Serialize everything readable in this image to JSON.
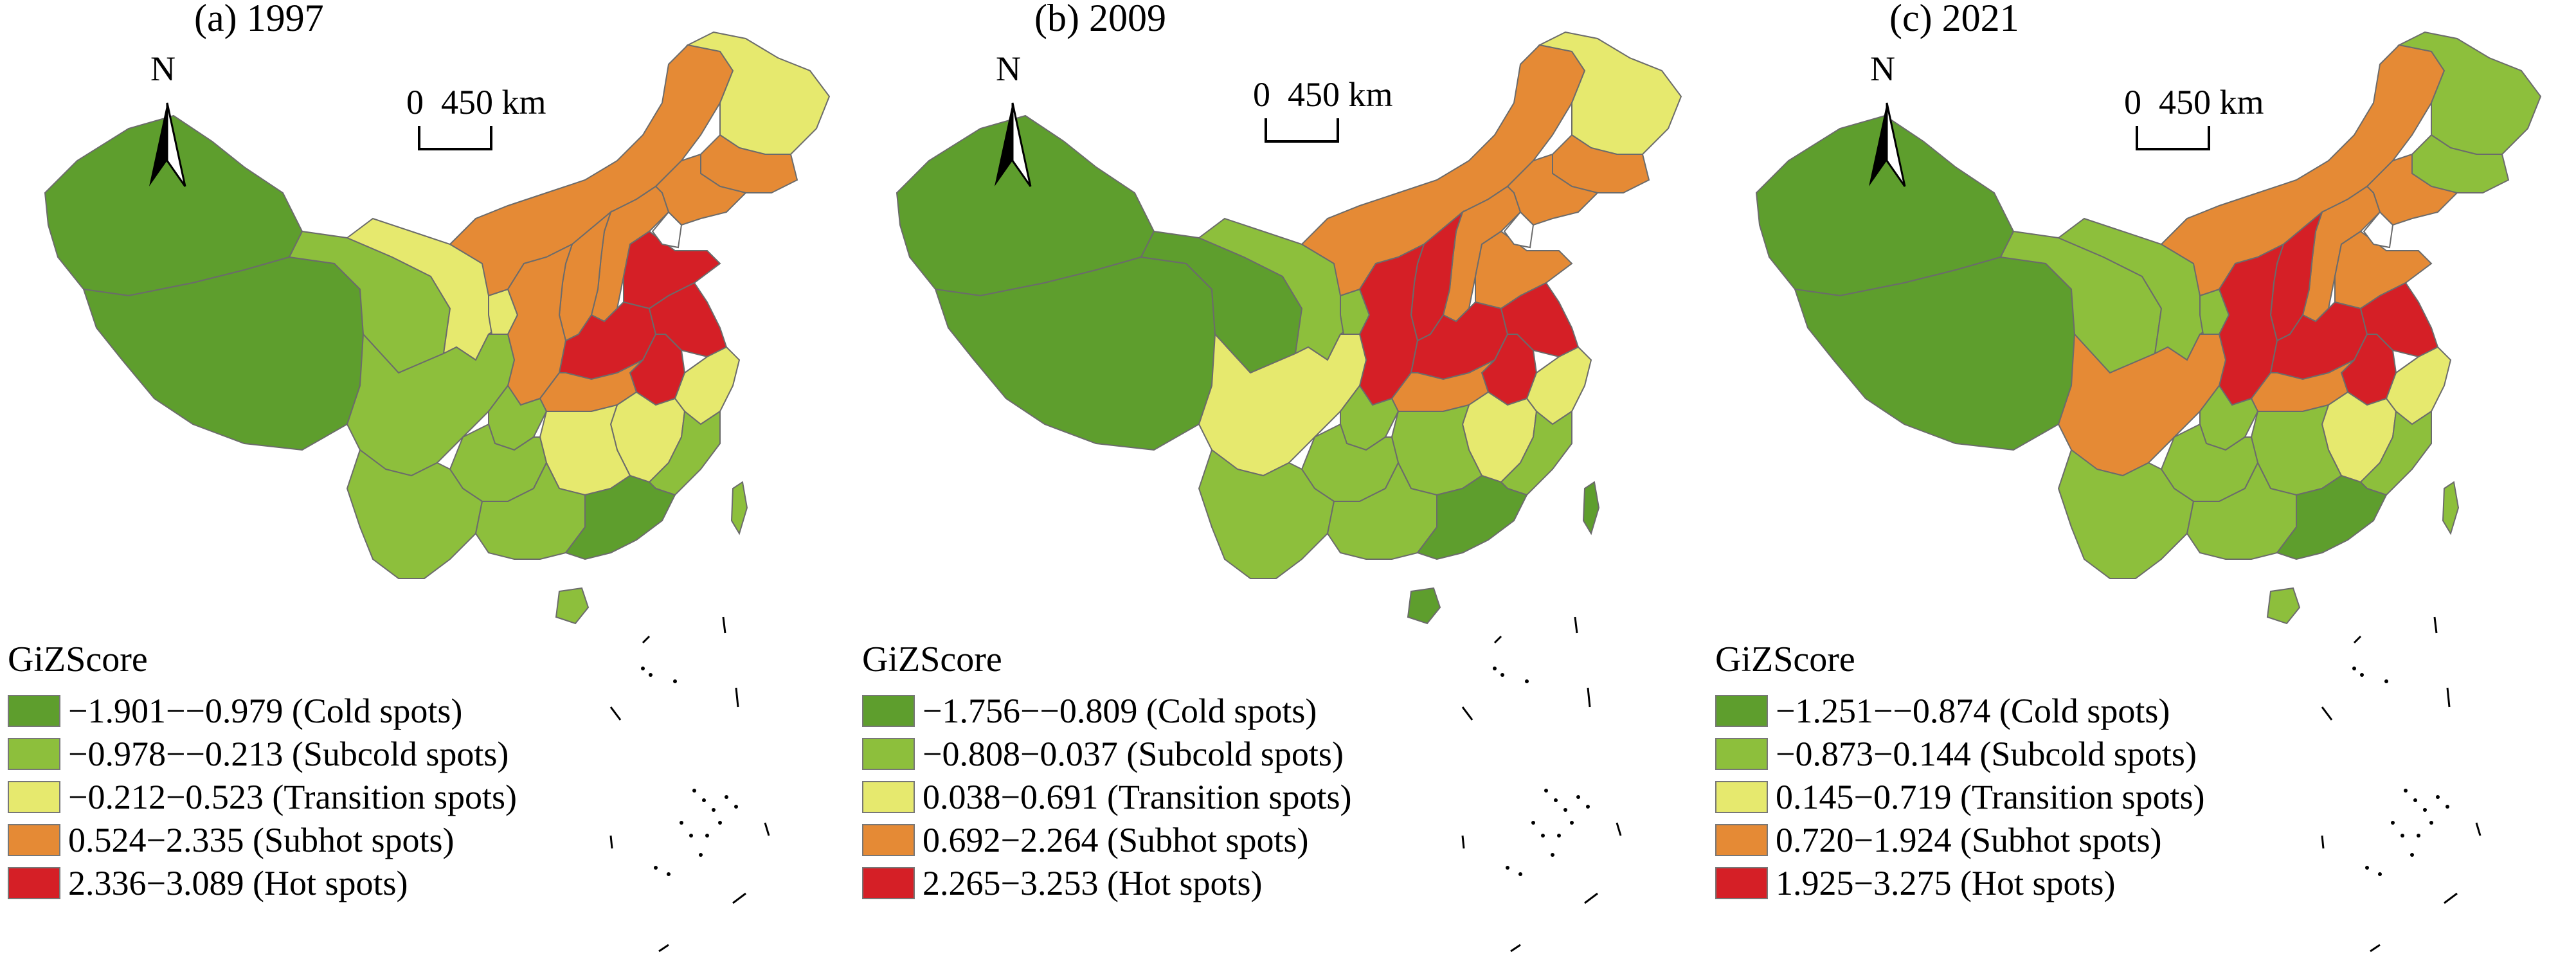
{
  "colors": {
    "cold": "#5e9e2d",
    "subcold": "#8dbf3c",
    "transition": "#e6e96e",
    "subhot": "#e58a35",
    "hot": "#d51f26",
    "boundary": "#6b6b6b"
  },
  "common": {
    "north_label": "N",
    "scale_zero": "0",
    "scale_dist": "450 km",
    "legend_title": "GiZScore"
  },
  "panels": [
    {
      "title": "(a) 1997",
      "legend": [
        {
          "range": "−1.901−−0.979",
          "label": "(Cold spots)",
          "class": "cold"
        },
        {
          "range": "−0.978−−0.213",
          "label": "(Subcold spots)",
          "class": "subcold"
        },
        {
          "range": "−0.212−0.523",
          "label": "(Transition spots)",
          "class": "transition"
        },
        {
          "range": "0.524−2.335",
          "label": "(Subhot spots)",
          "class": "subhot"
        },
        {
          "range": "2.336−3.089",
          "label": "(Hot spots)",
          "class": "hot"
        }
      ],
      "regions": {
        "xinjiang": "cold",
        "tibet": "cold",
        "qinghai": "subcold",
        "gansu": "transition",
        "ningxia": "transition",
        "inner_mongolia": "subhot",
        "heilongjiang": "transition",
        "jilin": "subhot",
        "liaoning": "subhot",
        "shanxi": "subhot",
        "shaanxi": "subhot",
        "hebei": "subhot",
        "shandong": "hot",
        "henan": "hot",
        "anhui": "hot",
        "jiangsu": "hot",
        "sichuan": "subcold",
        "chongqing": "subcold",
        "hubei": "subhot",
        "hunan": "transition",
        "jiangxi": "transition",
        "zhejiang": "transition",
        "fujian": "subcold",
        "guizhou": "subcold",
        "yunnan": "subcold",
        "guangxi": "subcold",
        "guangdong": "cold",
        "hainan": "subcold",
        "taiwan": "subcold"
      }
    },
    {
      "title": "(b) 2009",
      "legend": [
        {
          "range": "−1.756−−0.809",
          "label": "(Cold spots)",
          "class": "cold"
        },
        {
          "range": "−0.808−0.037",
          "label": "(Subcold spots)",
          "class": "subcold"
        },
        {
          "range": "0.038−0.691",
          "label": "(Transition spots)",
          "class": "transition"
        },
        {
          "range": "0.692−2.264",
          "label": "(Subhot spots)",
          "class": "subhot"
        },
        {
          "range": "2.265−3.253",
          "label": "(Hot spots)",
          "class": "hot"
        }
      ],
      "regions": {
        "xinjiang": "cold",
        "tibet": "cold",
        "qinghai": "cold",
        "gansu": "subcold",
        "ningxia": "subcold",
        "inner_mongolia": "subhot",
        "heilongjiang": "transition",
        "jilin": "subhot",
        "liaoning": "subhot",
        "shanxi": "hot",
        "shaanxi": "hot",
        "hebei": "subhot",
        "shandong": "subhot",
        "henan": "hot",
        "anhui": "hot",
        "jiangsu": "hot",
        "sichuan": "transition",
        "chongqing": "subcold",
        "hubei": "subhot",
        "hunan": "subcold",
        "jiangxi": "transition",
        "zhejiang": "transition",
        "fujian": "subcold",
        "guizhou": "subcold",
        "yunnan": "subcold",
        "guangxi": "subcold",
        "guangdong": "cold",
        "hainan": "cold",
        "taiwan": "cold"
      }
    },
    {
      "title": "(c) 2021",
      "legend": [
        {
          "range": "−1.251−−0.874",
          "label": "(Cold spots)",
          "class": "cold"
        },
        {
          "range": "−0.873−0.144",
          "label": "(Subcold spots)",
          "class": "subcold"
        },
        {
          "range": "0.145−0.719",
          "label": "(Transition spots)",
          "class": "transition"
        },
        {
          "range": "0.720−1.924",
          "label": "(Subhot spots)",
          "class": "subhot"
        },
        {
          "range": "1.925−3.275",
          "label": "(Hot spots)",
          "class": "hot"
        }
      ],
      "regions": {
        "xinjiang": "cold",
        "tibet": "cold",
        "qinghai": "subcold",
        "gansu": "subcold",
        "ningxia": "subcold",
        "inner_mongolia": "subhot",
        "heilongjiang": "subcold",
        "jilin": "subcold",
        "liaoning": "subhot",
        "shanxi": "hot",
        "shaanxi": "hot",
        "hebei": "subhot",
        "shandong": "subhot",
        "henan": "hot",
        "anhui": "hot",
        "jiangsu": "hot",
        "sichuan": "subhot",
        "chongqing": "subcold",
        "hubei": "subhot",
        "hunan": "subcold",
        "jiangxi": "transition",
        "zhejiang": "transition",
        "fujian": "subcold",
        "guizhou": "subcold",
        "yunnan": "subcold",
        "guangxi": "subcold",
        "guangdong": "cold",
        "hainan": "subcold",
        "taiwan": "subcold"
      }
    }
  ]
}
